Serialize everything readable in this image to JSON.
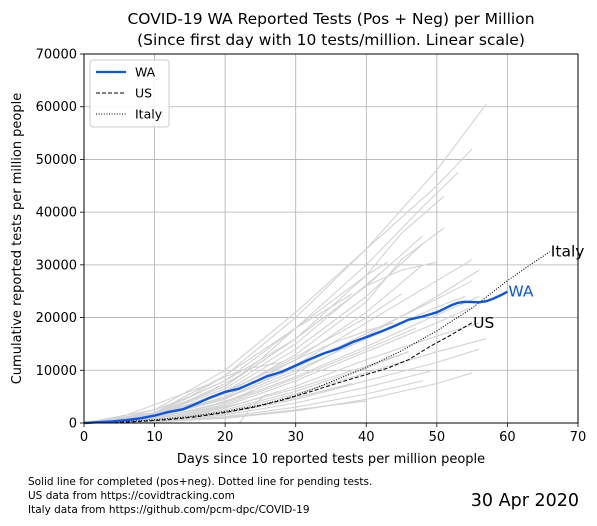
{
  "chart_data": {
    "type": "line",
    "title": "COVID-19 WA Reported Tests (Pos + Neg) per Million",
    "subtitle": "(Since first day with 10 tests/million. Linear scale)",
    "xlabel": "Days since 10 reported tests per million people",
    "ylabel": "Cumulative reported tests per million people",
    "xlim": [
      0,
      70
    ],
    "ylim": [
      0,
      70000
    ],
    "xticks": [
      "0",
      "10",
      "20",
      "30",
      "40",
      "50",
      "60",
      "70"
    ],
    "yticks": [
      "0",
      "10000",
      "20000",
      "30000",
      "40000",
      "50000",
      "60000",
      "70000"
    ],
    "grid": true,
    "legend_position": "top-left",
    "series": [
      {
        "name": "WA",
        "color": "#0b56e8",
        "style": "solid",
        "end_label": "WA",
        "x": [
          0,
          2,
          4,
          6,
          8,
          10,
          12,
          14,
          16,
          18,
          20,
          22,
          24,
          26,
          28,
          30,
          32,
          34,
          36,
          38,
          40,
          42,
          44,
          46,
          48,
          50,
          52,
          53,
          54,
          56,
          57,
          58,
          59,
          60
        ],
        "y": [
          0,
          150,
          300,
          550,
          900,
          1400,
          2100,
          2600,
          3700,
          4900,
          5900,
          6500,
          7700,
          8900,
          9700,
          10900,
          12100,
          13200,
          14100,
          15300,
          16300,
          17300,
          18400,
          19600,
          20200,
          21000,
          22300,
          22800,
          23000,
          22900,
          23100,
          23600,
          24200,
          24900
        ]
      },
      {
        "name": "US",
        "color": "#000000",
        "style": "dashed",
        "end_label": "US",
        "x": [
          0,
          4,
          8,
          12,
          16,
          20,
          24,
          28,
          32,
          36,
          40,
          43,
          46,
          49,
          52,
          55
        ],
        "y": [
          0,
          80,
          300,
          650,
          1200,
          2000,
          3000,
          4300,
          5900,
          7600,
          9200,
          10400,
          12000,
          14500,
          16700,
          19000
        ]
      },
      {
        "name": "Italy",
        "color": "#000000",
        "style": "dotted",
        "end_label": "Italy",
        "x": [
          0,
          5,
          10,
          15,
          20,
          25,
          30,
          35,
          40,
          45,
          50,
          55,
          60,
          63,
          66
        ],
        "y": [
          0,
          250,
          600,
          1200,
          2200,
          3400,
          5200,
          7800,
          10500,
          13700,
          17500,
          21800,
          27000,
          29800,
          32500
        ]
      }
    ],
    "background_series": {
      "color": "#d3d3d3",
      "lines": [
        {
          "x": [
            0,
            10,
            20,
            30,
            40,
            50,
            57
          ],
          "y": [
            0,
            2000,
            9000,
            20000,
            33000,
            48000,
            60500
          ]
        },
        {
          "x": [
            0,
            10,
            20,
            30,
            40,
            50,
            55
          ],
          "y": [
            0,
            2500,
            10000,
            21000,
            33000,
            45000,
            52000
          ]
        },
        {
          "x": [
            0,
            10,
            20,
            30,
            40,
            48,
            53
          ],
          "y": [
            0,
            1800,
            8000,
            18000,
            30000,
            41000,
            47500
          ]
        },
        {
          "x": [
            0,
            10,
            20,
            30,
            40,
            45,
            51
          ],
          "y": [
            0,
            1500,
            7000,
            16000,
            28000,
            36000,
            43000
          ]
        },
        {
          "x": [
            0,
            10,
            20,
            30,
            35,
            40,
            45,
            51
          ],
          "y": [
            0,
            1200,
            5500,
            13000,
            18000,
            23000,
            31000,
            37000
          ]
        },
        {
          "x": [
            0,
            10,
            20,
            30,
            40,
            48
          ],
          "y": [
            0,
            1200,
            6000,
            14000,
            24000,
            34000
          ]
        },
        {
          "x": [
            0,
            10,
            20,
            30,
            40,
            48
          ],
          "y": [
            0,
            1500,
            7000,
            16000,
            26000,
            35500
          ]
        },
        {
          "x": [
            0,
            10,
            20,
            30,
            40,
            48
          ],
          "y": [
            0,
            1000,
            5000,
            12000,
            21000,
            30000
          ]
        },
        {
          "x": [
            0,
            10,
            20,
            30,
            40,
            50,
            55
          ],
          "y": [
            0,
            1000,
            4500,
            11000,
            19000,
            27000,
            31000
          ]
        },
        {
          "x": [
            0,
            10,
            20,
            30,
            40,
            50,
            56
          ],
          "y": [
            0,
            800,
            4000,
            9500,
            16500,
            24000,
            29000
          ]
        },
        {
          "x": [
            0,
            10,
            20,
            30,
            40,
            50,
            55
          ],
          "y": [
            0,
            700,
            3200,
            8000,
            13500,
            19000,
            22000
          ]
        },
        {
          "x": [
            0,
            10,
            20,
            30,
            40,
            50,
            56
          ],
          "y": [
            0,
            500,
            2800,
            7000,
            12000,
            16500,
            19000
          ]
        },
        {
          "x": [
            0,
            10,
            20,
            30,
            40,
            50,
            57
          ],
          "y": [
            0,
            400,
            2200,
            5500,
            9500,
            13500,
            16000
          ]
        },
        {
          "x": [
            0,
            10,
            20,
            30,
            40,
            50,
            56
          ],
          "y": [
            0,
            350,
            1800,
            4500,
            8000,
            11500,
            14000
          ]
        },
        {
          "x": [
            0,
            10,
            20,
            30,
            40,
            49
          ],
          "y": [
            0,
            300,
            1500,
            3800,
            6800,
            9800
          ]
        },
        {
          "x": [
            0,
            10,
            20,
            30,
            40,
            48
          ],
          "y": [
            0,
            250,
            1200,
            3000,
            5500,
            8000
          ]
        },
        {
          "x": [
            0,
            5,
            10,
            15,
            20,
            25,
            30,
            35,
            40,
            45,
            50
          ],
          "y": [
            0,
            800,
            2500,
            5000,
            8000,
            12000,
            16000,
            21000,
            26000,
            29000,
            30500
          ]
        },
        {
          "x": [
            0,
            10,
            20,
            25,
            30,
            35,
            40,
            43
          ],
          "y": [
            0,
            1800,
            7000,
            12000,
            18000,
            23000,
            28000,
            30500
          ]
        },
        {
          "x": [
            0,
            10,
            20,
            30,
            38,
            42
          ],
          "y": [
            0,
            1500,
            6500,
            15000,
            24000,
            28500
          ]
        },
        {
          "x": [
            0,
            10,
            15,
            20,
            25,
            30,
            35,
            38
          ],
          "y": [
            0,
            2000,
            5000,
            9000,
            13500,
            18000,
            22000,
            24500
          ]
        },
        {
          "x": [
            0,
            10,
            20,
            30,
            40,
            47
          ],
          "y": [
            0,
            600,
            3500,
            8500,
            14000,
            18000
          ]
        },
        {
          "x": [
            0,
            10,
            20,
            30,
            40,
            46
          ],
          "y": [
            0,
            500,
            2500,
            6000,
            10500,
            13500
          ]
        },
        {
          "x": [
            0,
            10,
            20,
            30,
            38
          ],
          "y": [
            0,
            400,
            2000,
            4800,
            7500
          ]
        },
        {
          "x": [
            0,
            5,
            10,
            15,
            20,
            25,
            30,
            35,
            40,
            45,
            50,
            54
          ],
          "y": [
            0,
            300,
            1200,
            2800,
            4800,
            7200,
            10000,
            13000,
            16000,
            19000,
            22000,
            24000
          ]
        },
        {
          "x": [
            0,
            5,
            10,
            15,
            20,
            25,
            30,
            35,
            40,
            44
          ],
          "y": [
            0,
            400,
            1600,
            3600,
            6000,
            9000,
            12000,
            15000,
            17500,
            19000
          ]
        },
        {
          "x": [
            0,
            10,
            20,
            30,
            40,
            50,
            56
          ],
          "y": [
            0,
            900,
            3800,
            8800,
            14500,
            20500,
            24000
          ]
        },
        {
          "x": [
            0,
            10,
            20,
            30,
            40,
            50,
            55
          ],
          "y": [
            0,
            1100,
            4800,
            10500,
            17000,
            23500,
            27000
          ]
        },
        {
          "x": [
            0,
            10,
            20,
            30,
            40,
            45
          ],
          "y": [
            0,
            1300,
            5800,
            12500,
            20000,
            24500
          ]
        },
        {
          "x": [
            0,
            8,
            12,
            16,
            20,
            22
          ],
          "y": [
            0,
            800,
            2500,
            5000,
            7500,
            9000
          ]
        },
        {
          "x": [
            0,
            6,
            10,
            14,
            18,
            20,
            22,
            24,
            28
          ],
          "y": [
            0,
            1500,
            3500,
            5500,
            7500,
            8800,
            9800,
            10500,
            11500
          ]
        },
        {
          "x": [
            0,
            5,
            10,
            15,
            20,
            25
          ],
          "y": [
            0,
            600,
            1800,
            3500,
            5800,
            8200
          ]
        },
        {
          "x": [
            0,
            8,
            16,
            22,
            24
          ],
          "y": [
            0,
            600,
            2500,
            5000,
            6000
          ]
        },
        {
          "x": [
            22,
            24,
            26
          ],
          "y": [
            0,
            3500,
            5500
          ]
        },
        {
          "x": [
            0,
            10,
            20,
            30,
            40,
            46
          ],
          "y": [
            0,
            800,
            3000,
            6500,
            10800,
            13500
          ]
        },
        {
          "x": [
            0,
            10,
            20,
            30,
            40
          ],
          "y": [
            0,
            200,
            1000,
            2500,
            4200
          ]
        },
        {
          "x": [
            0,
            10,
            20,
            30,
            40,
            50,
            55
          ],
          "y": [
            0,
            200,
            900,
            2300,
            4500,
            7500,
            9500
          ]
        }
      ]
    }
  },
  "legend": {
    "items": [
      {
        "label": "WA",
        "color": "#0b56e8",
        "style": "solid"
      },
      {
        "label": "US",
        "color": "#000000",
        "style": "dashed"
      },
      {
        "label": "Italy",
        "color": "#000000",
        "style": "dotted"
      }
    ]
  },
  "footnotes": [
    "Solid line for completed (pos+neg). Dotted line for pending tests.",
    "US data from https://covidtracking.com",
    "Italy data from https://github.com/pcm-dpc/COVID-19"
  ],
  "date_stamp": "30 Apr 2020"
}
